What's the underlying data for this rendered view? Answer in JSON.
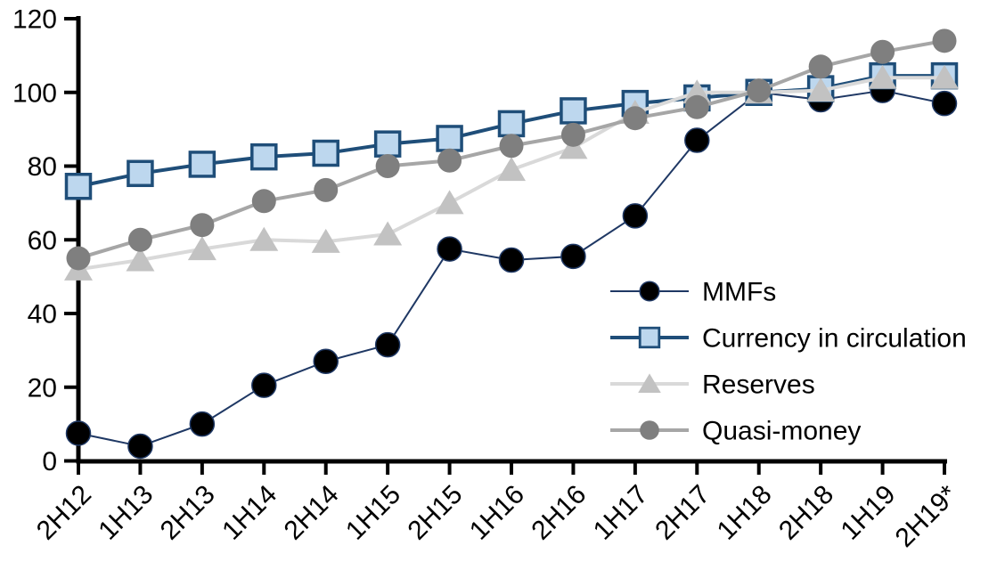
{
  "chart_data": {
    "type": "line",
    "title": "",
    "xlabel": "",
    "ylabel": "",
    "ylim": [
      0,
      120
    ],
    "yticks": [
      0,
      20,
      40,
      60,
      80,
      100,
      120
    ],
    "grid": false,
    "legend_position": "inside-right-middle",
    "x_tick_label_rotation": -45,
    "categories": [
      "2H12",
      "1H13",
      "2H13",
      "1H14",
      "2H14",
      "1H15",
      "2H15",
      "1H16",
      "2H16",
      "1H17",
      "2H17",
      "1H18",
      "2H18",
      "1H19",
      "2H19*"
    ],
    "series": [
      {
        "name": "MMFs",
        "marker": "circle",
        "marker_fill": "#000000",
        "marker_stroke": "#1F3864",
        "line_color": "#1F3864",
        "line_width": 2,
        "values": [
          7.5,
          4,
          10,
          20.5,
          27,
          31.5,
          57.5,
          54.5,
          55.5,
          66.5,
          87,
          100,
          98,
          100.5,
          97
        ]
      },
      {
        "name": "Currency in circulation",
        "marker": "square",
        "marker_fill": "#BDD7EE",
        "marker_stroke": "#1F4E79",
        "line_color": "#1F4E79",
        "line_width": 4,
        "values": [
          74.5,
          78,
          80.5,
          82.5,
          83.5,
          86,
          87.5,
          91.5,
          95,
          97,
          98.5,
          100,
          101,
          104.5,
          104.5
        ]
      },
      {
        "name": "Reserves",
        "marker": "triangle",
        "marker_fill": "#C2C2C2",
        "marker_stroke": "none",
        "line_color": "#D9D9D9",
        "line_width": 4,
        "values": [
          52,
          54.5,
          57.5,
          60,
          59.5,
          61.5,
          70,
          79,
          85,
          94.5,
          100,
          100,
          100.5,
          104,
          104
        ]
      },
      {
        "name": "Quasi-money",
        "marker": "circle",
        "marker_fill": "#7F7F7F",
        "marker_stroke": "none",
        "line_color": "#A6A6A6",
        "line_width": 4,
        "values": [
          55,
          60,
          64,
          70.5,
          73.5,
          80,
          81.5,
          85.5,
          88.5,
          93,
          96,
          100.5,
          107,
          111,
          114
        ]
      }
    ],
    "axis_color": "#000000",
    "text_color": "#000000"
  }
}
